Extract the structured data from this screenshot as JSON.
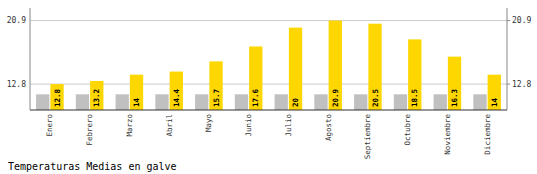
{
  "chart_data": {
    "type": "bar",
    "title": "Temperaturas Medias en galve",
    "categories": [
      "Enero",
      "Febrero",
      "Marzo",
      "Abril",
      "Mayo",
      "Junio",
      "Julio",
      "Agosto",
      "Septiembre",
      "Octubre",
      "Noviembre",
      "Diciembre"
    ],
    "series": [
      {
        "color": "#C0C0C0",
        "values": [
          11.5,
          11.5,
          11.5,
          11.5,
          11.5,
          11.5,
          11.5,
          11.5,
          11.5,
          11.5,
          11.5,
          11.5
        ]
      },
      {
        "color": "#FFD700",
        "data_labels": true,
        "values": [
          12.8,
          13.2,
          14.0,
          14.4,
          15.7,
          17.6,
          20.0,
          20.9,
          20.5,
          18.5,
          16.3,
          14.0
        ]
      }
    ],
    "ylim": [
      9.5,
      22.5
    ],
    "yticks": [
      12.8,
      20.9
    ],
    "y2lim": [
      9.5,
      22.5
    ],
    "y2ticks": [
      12.8,
      20.9
    ],
    "grid": true
  }
}
